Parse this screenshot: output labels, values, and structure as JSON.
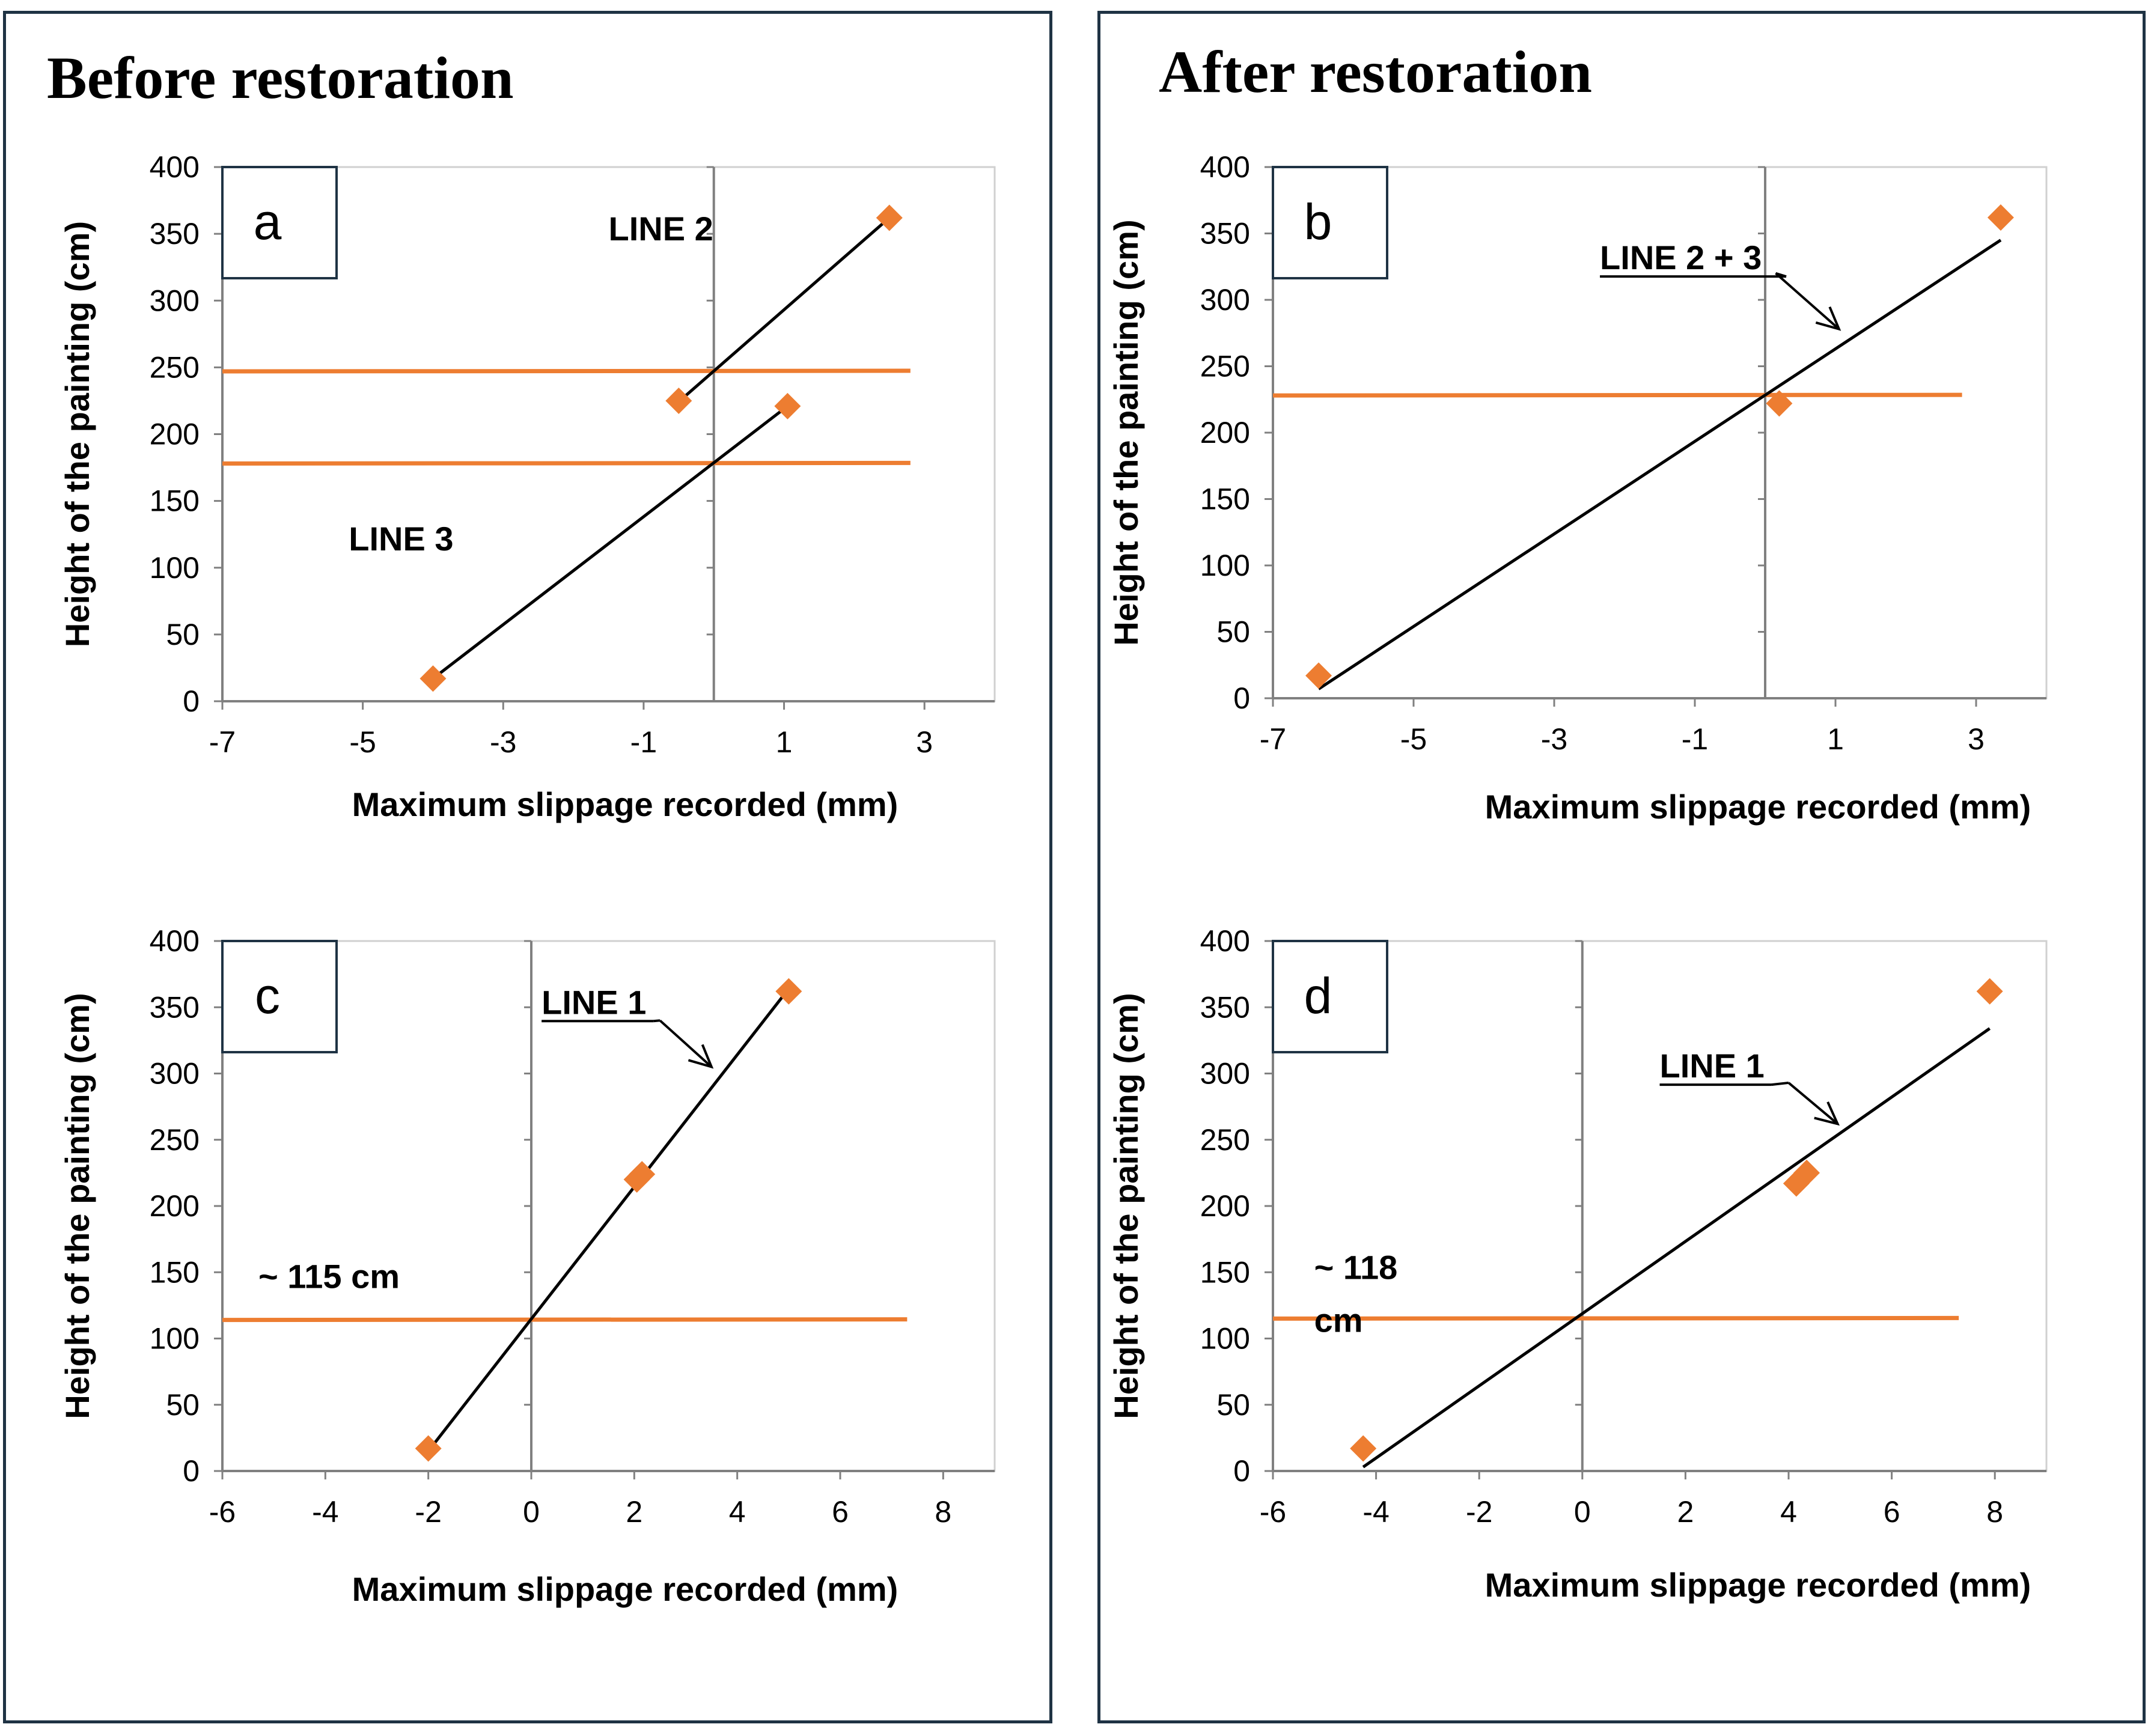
{
  "sections": {
    "before": {
      "title": "Before restoration"
    },
    "after": {
      "title": "After restoration"
    }
  },
  "colors": {
    "marker": "#ED7D31",
    "hline": "#ED7D31",
    "fit": "#000000",
    "axis": "#808080",
    "frame": "#1F3344"
  },
  "chart_data": [
    {
      "id": "a",
      "panel_label": "a",
      "type": "scatter",
      "xlabel": "Maximum slippage recorded (mm)",
      "ylabel": "Height of the painting (cm)",
      "xlim": [
        -7,
        4
      ],
      "ylim": [
        0,
        400
      ],
      "xticks": [
        -7,
        -5,
        -3,
        -1,
        1,
        3
      ],
      "yticks": [
        0,
        50,
        100,
        150,
        200,
        250,
        300,
        350,
        400
      ],
      "points": [
        {
          "x": 2.5,
          "y": 362
        },
        {
          "x": -0.5,
          "y": 225
        },
        {
          "x": 1.05,
          "y": 221
        },
        {
          "x": -4.0,
          "y": 17
        }
      ],
      "fit_lines": [
        {
          "x1": -0.55,
          "y1": 222,
          "x2": 2.5,
          "y2": 362
        },
        {
          "x1": -4.0,
          "y1": 17,
          "x2": 1.05,
          "y2": 221
        }
      ],
      "hlines": [
        {
          "y": 247,
          "x1": -7,
          "x2": 2.8
        },
        {
          "y": 178,
          "x1": -7,
          "x2": 2.8
        }
      ],
      "annotations": [
        {
          "text": "LINE 2",
          "x": -1.5,
          "y": 345,
          "underline": false,
          "arrow": null
        },
        {
          "text": "LINE 3",
          "x": -5.2,
          "y": 113,
          "underline": false,
          "arrow": null
        }
      ]
    },
    {
      "id": "b",
      "panel_label": "b",
      "type": "scatter",
      "xlabel": "Maximum slippage recorded (mm)",
      "ylabel": "Height of the painting (cm)",
      "xlim": [
        -7,
        4
      ],
      "ylim": [
        0,
        400
      ],
      "xticks": [
        -7,
        -5,
        -3,
        -1,
        1,
        3
      ],
      "yticks": [
        0,
        50,
        100,
        150,
        200,
        250,
        300,
        350,
        400
      ],
      "points": [
        {
          "x": 3.35,
          "y": 362
        },
        {
          "x": 0.2,
          "y": 222
        },
        {
          "x": -6.35,
          "y": 17
        }
      ],
      "fit_lines": [
        {
          "x1": -6.35,
          "y1": 7,
          "x2": 3.35,
          "y2": 345
        }
      ],
      "hlines": [
        {
          "y": 228,
          "x1": -7,
          "x2": 2.8
        }
      ],
      "annotations": [
        {
          "text": "LINE 2 + 3",
          "x": -2.35,
          "y": 323,
          "underline": true,
          "arrow": {
            "x1": 0.15,
            "y1": 320,
            "x2": 1.05,
            "y2": 278
          }
        }
      ]
    },
    {
      "id": "c",
      "panel_label": "c",
      "type": "scatter",
      "xlabel": "Maximum slippage recorded (mm)",
      "ylabel": "Height of the painting (cm)",
      "xlim": [
        -6,
        9
      ],
      "ylim": [
        0,
        400
      ],
      "xticks": [
        -6,
        -4,
        -2,
        0,
        2,
        4,
        6,
        8
      ],
      "yticks": [
        0,
        50,
        100,
        150,
        200,
        250,
        300,
        350,
        400
      ],
      "points": [
        {
          "x": 5.0,
          "y": 362
        },
        {
          "x": 2.05,
          "y": 220
        },
        {
          "x": 2.15,
          "y": 224
        },
        {
          "x": -2.0,
          "y": 17
        }
      ],
      "fit_lines": [
        {
          "x1": -2.0,
          "y1": 15,
          "x2": 5.0,
          "y2": 364
        }
      ],
      "hlines": [
        {
          "y": 114,
          "x1": -6,
          "x2": 7.3
        }
      ],
      "annotations": [
        {
          "text": "~ 115 cm",
          "x": -5.3,
          "y": 138,
          "underline": false,
          "arrow": null
        },
        {
          "text": "LINE 1",
          "x": 0.2,
          "y": 345,
          "underline": true,
          "arrow": {
            "x1": 2.5,
            "y1": 340,
            "x2": 3.5,
            "y2": 305
          }
        }
      ]
    },
    {
      "id": "d",
      "panel_label": "d",
      "type": "scatter",
      "xlabel": "Maximum slippage recorded (mm)",
      "ylabel": "Height of the painting (cm)",
      "xlim": [
        -6,
        9
      ],
      "ylim": [
        0,
        400
      ],
      "xticks": [
        -6,
        -4,
        -2,
        0,
        2,
        4,
        6,
        8
      ],
      "yticks": [
        0,
        50,
        100,
        150,
        200,
        250,
        300,
        350,
        400
      ],
      "points": [
        {
          "x": 7.9,
          "y": 362
        },
        {
          "x": 4.15,
          "y": 217
        },
        {
          "x": 4.35,
          "y": 225
        },
        {
          "x": -4.25,
          "y": 17
        }
      ],
      "fit_lines": [
        {
          "x1": -4.25,
          "y1": 3,
          "x2": 7.9,
          "y2": 334
        }
      ],
      "hlines": [
        {
          "y": 115,
          "x1": -6,
          "x2": 7.3
        }
      ],
      "annotations": [
        {
          "text": "~ 118",
          "x": -5.2,
          "y": 145,
          "underline": false,
          "arrow": null
        },
        {
          "text": "cm",
          "x": -5.2,
          "y": 105,
          "underline": false,
          "arrow": null
        },
        {
          "text": "LINE 1",
          "x": 1.5,
          "y": 297,
          "underline": true,
          "arrow": {
            "x1": 4.0,
            "y1": 293,
            "x2": 4.95,
            "y2": 262
          }
        }
      ]
    }
  ]
}
